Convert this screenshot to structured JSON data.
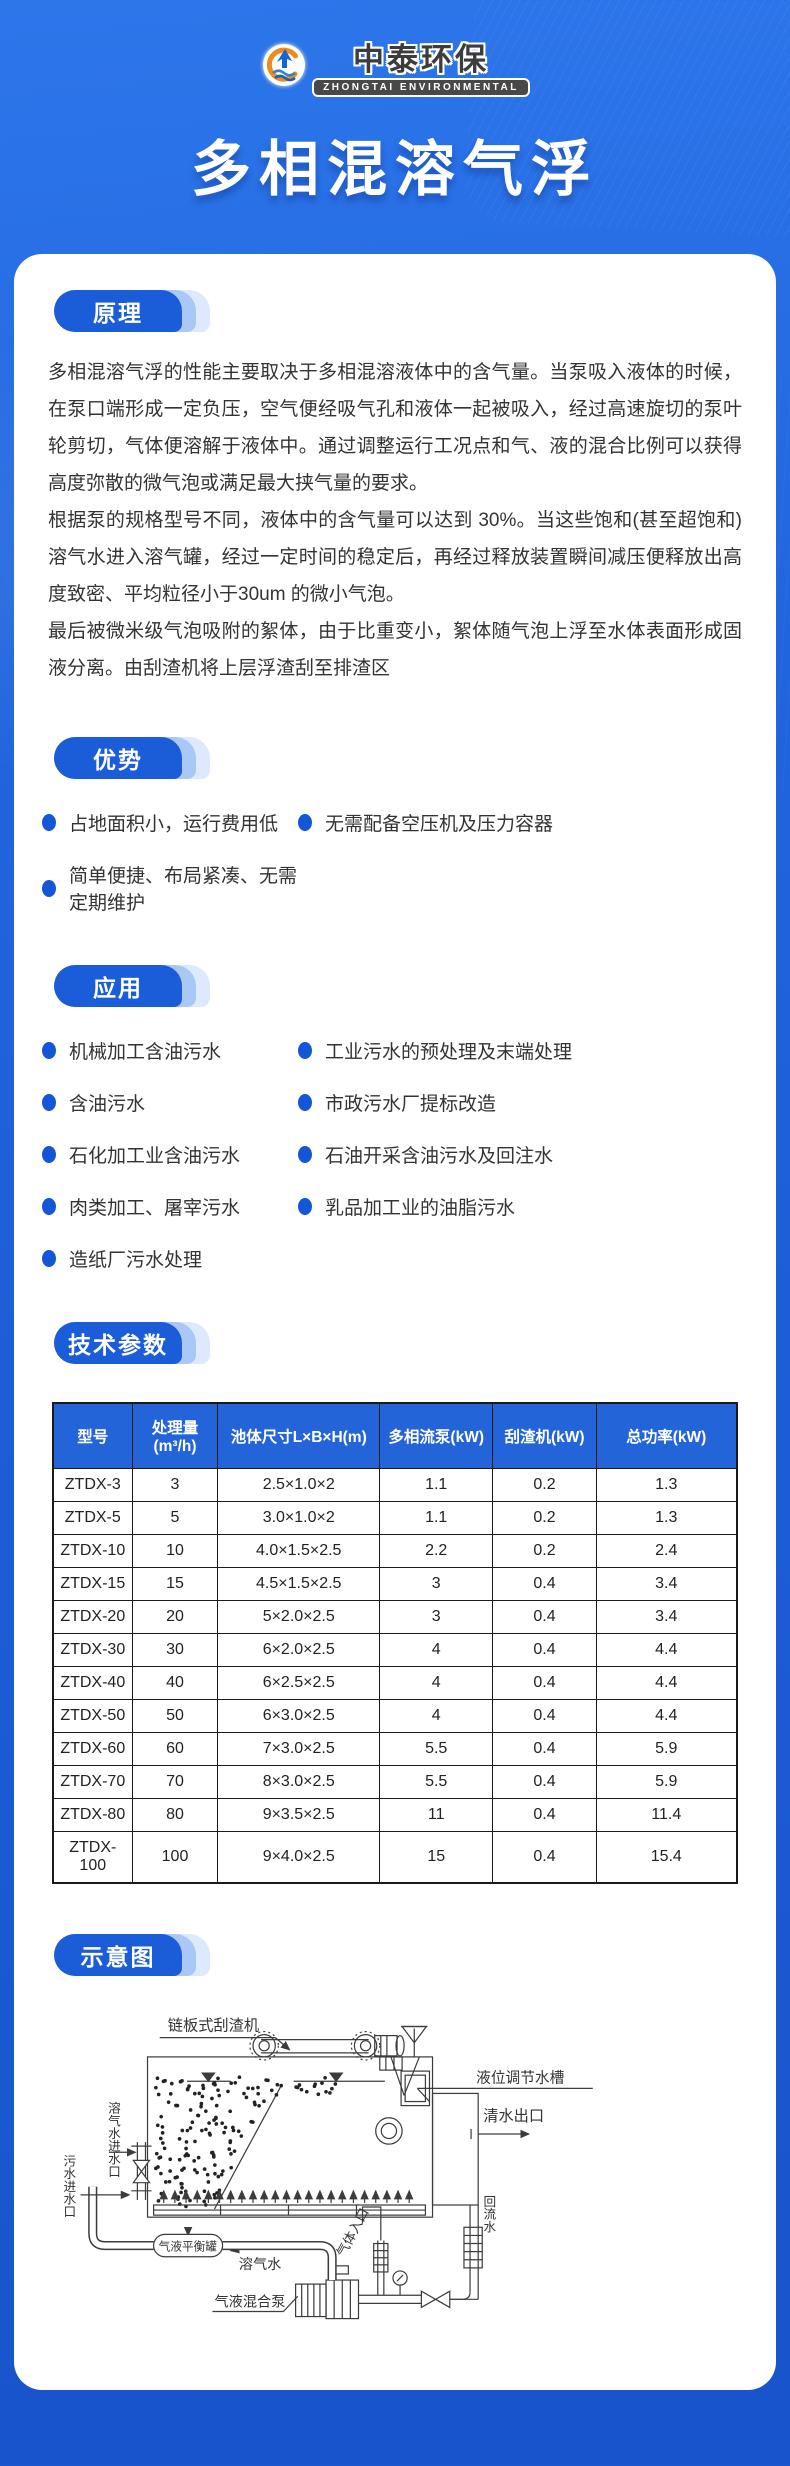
{
  "header": {
    "logo_cn": "中泰环保",
    "logo_en": "ZHONGTAI ENVIRONMENTAL",
    "title": "多相混溶气浮"
  },
  "colors": {
    "accent": "#1b5cd8",
    "bullet": "#1456d8",
    "tableHeader": "#2364d9",
    "pageTop": "#2d76ea",
    "pageBottom": "#1854cb"
  },
  "sections": {
    "principle": {
      "tag": "原理",
      "paragraphs": [
        "多相混溶气浮的性能主要取决于多相混溶液体中的含气量。当泵吸入液体的时候，在泵口端形成一定负压，空气便经吸气孔和液体一起被吸入，经过高速旋切的泵叶轮剪切，气体便溶解于液体中。通过调整运行工况点和气、液的混合比例可以获得高度弥散的微气泡或满足最大挟气量的要求。",
        "根据泵的规格型号不同，液体中的含气量可以达到 30%。当这些饱和(甚至超饱和)溶气水进入溶气罐，经过一定时间的稳定后，再经过释放装置瞬间减压便释放出高度致密、平均粒径小于30um 的微小气泡。",
        "最后被微米级气泡吸附的絮体，由于比重变小，絮体随气泡上浮至水体表面形成固液分离。由刮渣机将上层浮渣刮至排渣区"
      ]
    },
    "advantages": {
      "tag": "优势",
      "items": [
        "占地面积小，运行费用低",
        "无需配备空压机及压力容器",
        "简单便捷、布局紧凑、无需定期维护"
      ]
    },
    "applications": {
      "tag": "应用",
      "items": [
        "机械加工含油污水",
        "工业污水的预处理及末端处理",
        "含油污水",
        "市政污水厂提标改造",
        "石化加工业含油污水",
        "石油开采含油污水及回注水",
        "肉类加工、屠宰污水",
        "乳品加工业的油脂污水",
        "造纸厂污水处理"
      ]
    },
    "parameters": {
      "tag": "技术参数",
      "table": {
        "headers": [
          "型号",
          "处理量(m³/h)",
          "池体尺寸L×B×H(m)",
          "多相流泵(kW)",
          "刮渣机(kW)",
          "总功率(kW)"
        ],
        "rows": [
          [
            "ZTDX-3",
            "3",
            "2.5×1.0×2",
            "1.1",
            "0.2",
            "1.3"
          ],
          [
            "ZTDX-5",
            "5",
            "3.0×1.0×2",
            "1.1",
            "0.2",
            "1.3"
          ],
          [
            "ZTDX-10",
            "10",
            "4.0×1.5×2.5",
            "2.2",
            "0.2",
            "2.4"
          ],
          [
            "ZTDX-15",
            "15",
            "4.5×1.5×2.5",
            "3",
            "0.4",
            "3.4"
          ],
          [
            "ZTDX-20",
            "20",
            "5×2.0×2.5",
            "3",
            "0.4",
            "3.4"
          ],
          [
            "ZTDX-30",
            "30",
            "6×2.0×2.5",
            "4",
            "0.4",
            "4.4"
          ],
          [
            "ZTDX-40",
            "40",
            "6×2.5×2.5",
            "4",
            "0.4",
            "4.4"
          ],
          [
            "ZTDX-50",
            "50",
            "6×3.0×2.5",
            "4",
            "0.4",
            "4.4"
          ],
          [
            "ZTDX-60",
            "60",
            "7×3.0×2.5",
            "5.5",
            "0.4",
            "5.9"
          ],
          [
            "ZTDX-70",
            "70",
            "8×3.0×2.5",
            "5.5",
            "0.4",
            "5.9"
          ],
          [
            "ZTDX-80",
            "80",
            "9×3.5×2.5",
            "11",
            "0.4",
            "11.4"
          ],
          [
            "ZTDX-100",
            "100",
            "9×4.0×2.5",
            "15",
            "0.4",
            "15.4"
          ]
        ]
      }
    },
    "diagram": {
      "tag": "示意图",
      "labels": {
        "scraper": "链板式刮渣机",
        "level_tank": "液位调节水槽",
        "clean_water_outlet": "清水出口",
        "dissolved_air_inlet": "溶气水进水口",
        "sewage_inlet": "污水进水口",
        "balance_tank": "气液平衡罐",
        "dissolved_water": "溶气水",
        "mixing_pump": "气液混合泵",
        "gas_inlet": "气体入口",
        "return_water": "回流水"
      }
    }
  }
}
